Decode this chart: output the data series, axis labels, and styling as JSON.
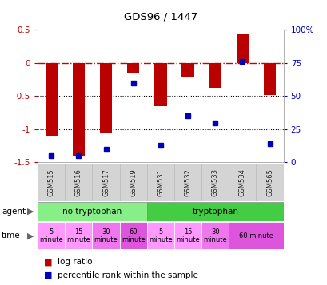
{
  "title": "GDS96 / 1447",
  "samples": [
    "GSM515",
    "GSM516",
    "GSM517",
    "GSM519",
    "GSM531",
    "GSM532",
    "GSM533",
    "GSM534",
    "GSM565"
  ],
  "log_ratio": [
    -1.1,
    -1.4,
    -1.05,
    -0.15,
    -0.65,
    -0.22,
    -0.37,
    0.45,
    -0.48
  ],
  "percentile": [
    5,
    5,
    10,
    60,
    13,
    35,
    30,
    76,
    14
  ],
  "ylim_left": [
    -1.5,
    0.5
  ],
  "ylim_right": [
    0,
    100
  ],
  "left_ticks": [
    0.5,
    0,
    -0.5,
    -1.0,
    -1.5
  ],
  "right_ticks": [
    100,
    75,
    50,
    25,
    0
  ],
  "bar_color": "#bb0000",
  "dot_color": "#0000bb",
  "zero_line_color": "#cc0000",
  "dotted_line_color": "#000000",
  "agent_groups": [
    {
      "label": "no tryptophan",
      "start": 0,
      "end": 4,
      "color": "#88ee88"
    },
    {
      "label": "tryptophan",
      "start": 4,
      "end": 9,
      "color": "#44cc44"
    }
  ],
  "time_cells": [
    {
      "label": "5\nminute",
      "col": 0,
      "span": 1,
      "color": "#ff99ff"
    },
    {
      "label": "15\nminute",
      "col": 1,
      "span": 1,
      "color": "#ff99ff"
    },
    {
      "label": "30\nminute",
      "col": 2,
      "span": 1,
      "color": "#ee77ee"
    },
    {
      "label": "60\nminute",
      "col": 3,
      "span": 1,
      "color": "#dd55dd"
    },
    {
      "label": "5\nminute",
      "col": 4,
      "span": 1,
      "color": "#ff99ff"
    },
    {
      "label": "15\nminute",
      "col": 5,
      "span": 1,
      "color": "#ff99ff"
    },
    {
      "label": "30\nminute",
      "col": 6,
      "span": 1,
      "color": "#ee77ee"
    },
    {
      "label": "60 minute",
      "col": 7,
      "span": 2,
      "color": "#dd55dd"
    }
  ],
  "background_color": "#ffffff",
  "bar_width": 0.45,
  "n_samples": 9
}
